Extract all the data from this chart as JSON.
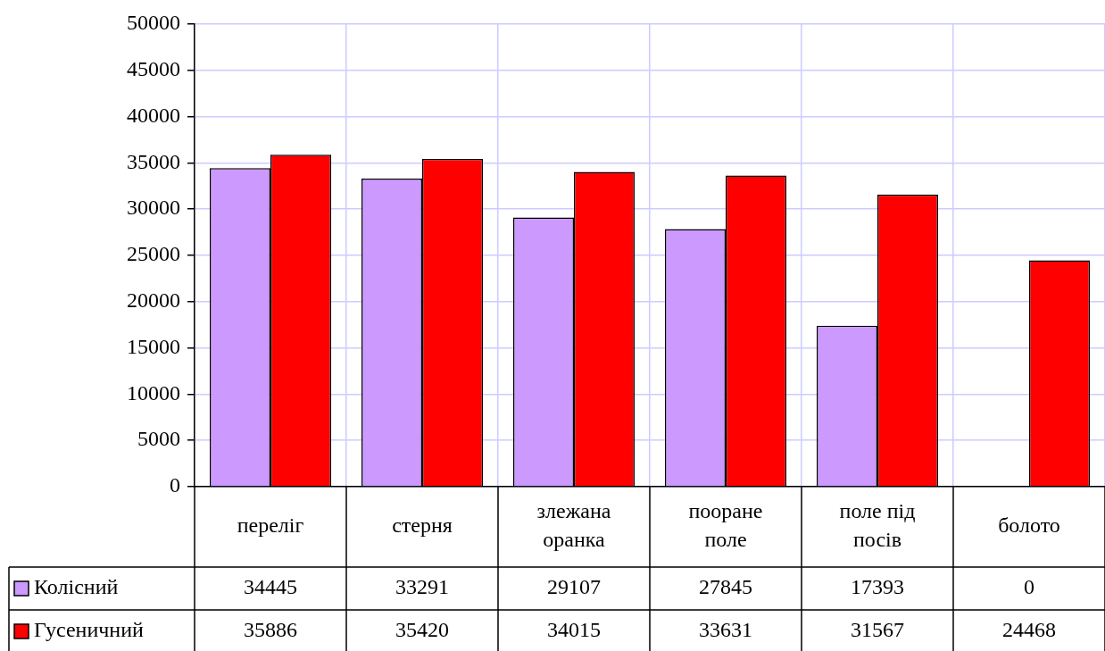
{
  "chart_data": {
    "type": "bar",
    "categories": [
      "переліг",
      "стерня",
      "злежана оранка",
      "пооране поле",
      "поле під посів",
      "болото"
    ],
    "series": [
      {
        "name": "Колісний",
        "color": "#cc99ff",
        "values": [
          34445,
          33291,
          29107,
          27845,
          17393,
          0
        ]
      },
      {
        "name": "Гусеничний",
        "color": "#ff0000",
        "values": [
          35886,
          35420,
          34015,
          33631,
          31567,
          24468
        ]
      }
    ],
    "ylim": [
      0,
      50000
    ],
    "yticks": [
      0,
      5000,
      10000,
      15000,
      20000,
      25000,
      30000,
      35000,
      40000,
      45000,
      50000
    ],
    "grid": true,
    "legend": "bottom",
    "data_labels": true
  }
}
